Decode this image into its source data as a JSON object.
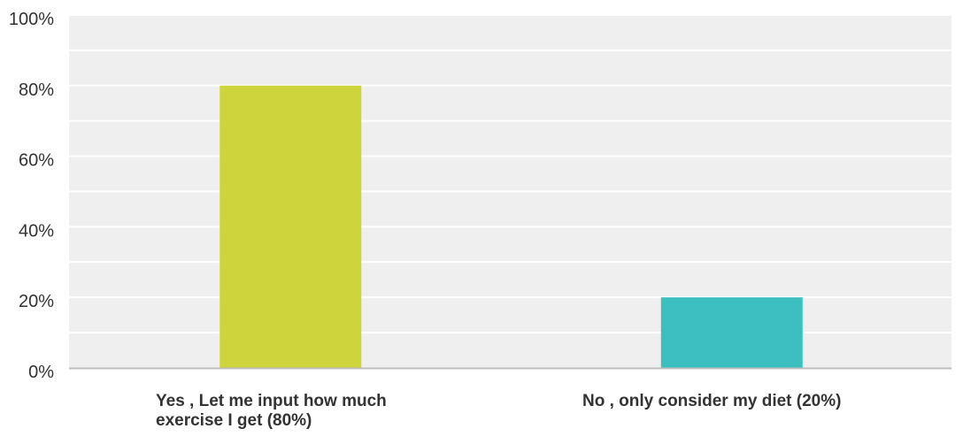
{
  "chart_data": {
    "type": "bar",
    "title": "",
    "xlabel": "",
    "ylabel": "",
    "categories": [
      "Yes , Let me input how much exercise I get (80%)",
      "No , only consider my diet (20%)"
    ],
    "values": [
      80,
      20
    ],
    "colors": [
      "#cdd43c",
      "#3dbfbf"
    ],
    "ylim": [
      0,
      100
    ],
    "yticks": [
      0,
      20,
      40,
      60,
      80,
      100
    ],
    "ytick_labels": [
      "0%",
      "20%",
      "40%",
      "60%",
      "80%",
      "100%"
    ],
    "grid": true,
    "legend": "none",
    "plot_background": "#efefef",
    "gridline_color": "#ffffff"
  }
}
